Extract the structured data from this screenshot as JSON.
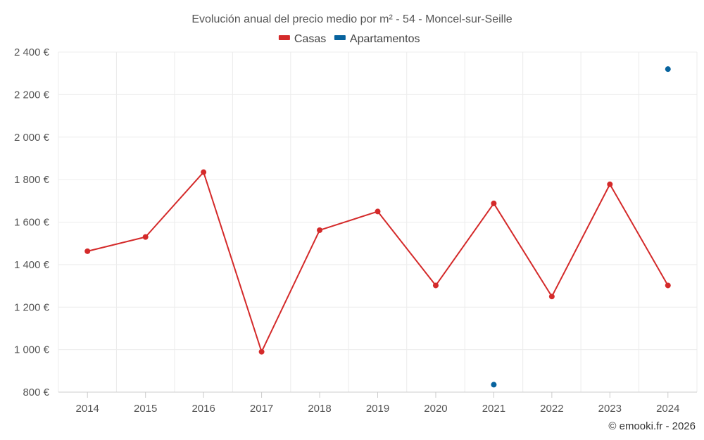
{
  "chart_data": {
    "type": "line",
    "title": "Evolución anual del precio medio por m² - 54 - Moncel-sur-Seille",
    "categories": [
      "2014",
      "2015",
      "2016",
      "2017",
      "2018",
      "2019",
      "2020",
      "2021",
      "2022",
      "2023",
      "2024"
    ],
    "series": [
      {
        "name": "Casas",
        "color": "#d42a2a",
        "line": true,
        "values": [
          1463,
          1530,
          1835,
          990,
          1562,
          1650,
          1302,
          1688,
          1250,
          1778,
          1302
        ]
      },
      {
        "name": "Apartamentos",
        "color": "#07639e",
        "line": false,
        "values": [
          null,
          null,
          null,
          null,
          null,
          null,
          null,
          835,
          null,
          null,
          2320
        ]
      }
    ],
    "ylim": [
      800,
      2400
    ],
    "yticks": [
      800,
      1000,
      1200,
      1400,
      1600,
      1800,
      2000,
      2200,
      2400
    ],
    "ytick_labels": [
      "800 €",
      "1 000 €",
      "1 200 €",
      "1 400 €",
      "1 600 €",
      "1 800 €",
      "2 000 €",
      "2 200 €",
      "2 400 €"
    ],
    "xlabel": "",
    "ylabel": "",
    "grid": true,
    "legend_position": "top-center"
  },
  "credit": "© emooki.fr - 2026"
}
